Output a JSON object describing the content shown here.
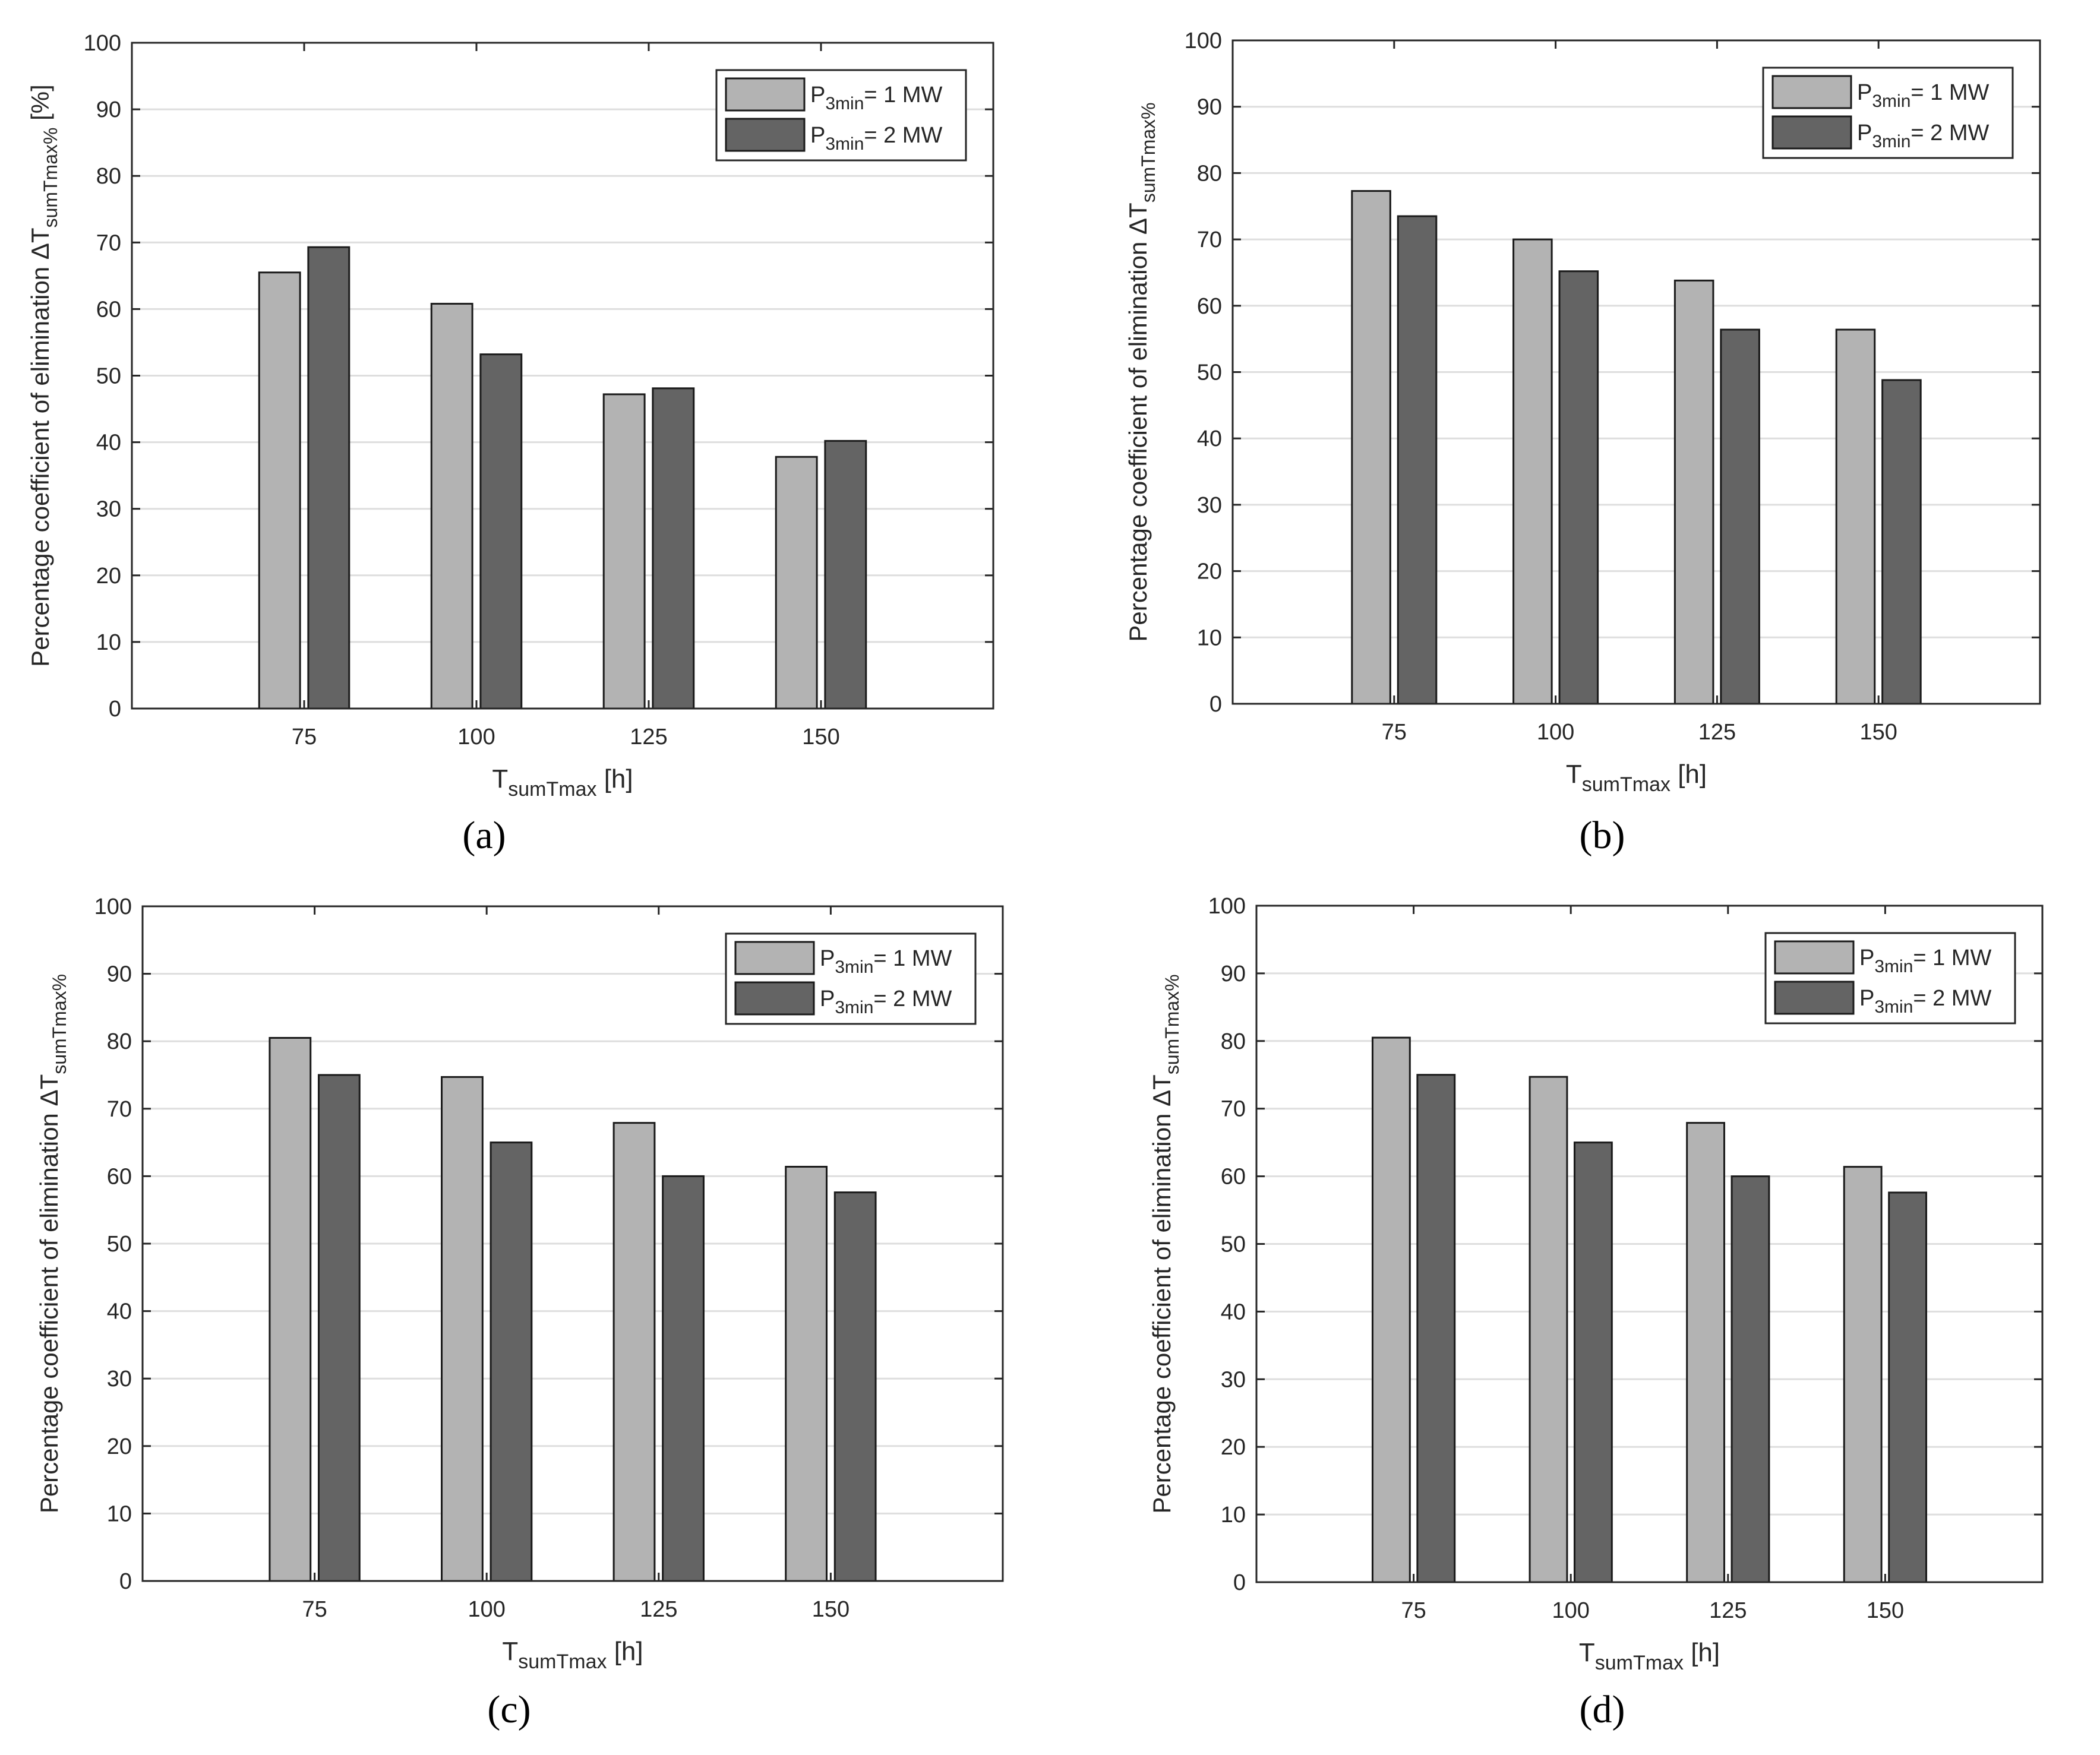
{
  "figure": {
    "captions": [
      "(a)",
      "(b)",
      "(c)",
      "(d)"
    ]
  },
  "colors": {
    "series1": "#b3b3b3",
    "series2": "#646464",
    "grid": "#dedede",
    "axis": "#262626",
    "text": "#262626",
    "background": "#ffffff"
  },
  "chart_data": [
    {
      "type": "bar",
      "panel": "(a)",
      "categories": [
        "75",
        "100",
        "125",
        "150"
      ],
      "series": [
        {
          "name": "P3min= 1 MW",
          "values": [
            65.5,
            60.8,
            47.2,
            37.8
          ]
        },
        {
          "name": "P3min= 2 MW",
          "values": [
            69.3,
            53.2,
            48.1,
            40.2
          ]
        }
      ],
      "legend_entries": [
        {
          "name": "P",
          "sub": "3min",
          "suffix": "= 1 MW"
        },
        {
          "name": "P",
          "sub": "3min",
          "suffix": "= 2 MW"
        }
      ],
      "xlabel": {
        "main": "T",
        "sub": "sumTmax",
        "suffix": " [h]"
      },
      "ylabel": {
        "prefix": "Percentage coefficient of elimination ΔT",
        "sub": "sumTmax%",
        "suffix": " [%]"
      },
      "ylim": [
        0,
        100
      ],
      "yticks": [
        "0",
        "10",
        "20",
        "30",
        "40",
        "50",
        "60",
        "70",
        "80",
        "90",
        "100"
      ],
      "grid": true,
      "legend": "top-right"
    },
    {
      "type": "bar",
      "panel": "(b)",
      "categories": [
        "75",
        "100",
        "125",
        "150"
      ],
      "series": [
        {
          "name": "P3min= 1 MW",
          "values": [
            77.3,
            70.0,
            63.8,
            56.4
          ]
        },
        {
          "name": "P3min= 2 MW",
          "values": [
            73.5,
            65.2,
            56.4,
            48.8
          ]
        }
      ],
      "legend_entries": [
        {
          "name": "P",
          "sub": "3min",
          "suffix": "= 1 MW"
        },
        {
          "name": "P",
          "sub": "3min",
          "suffix": "= 2 MW"
        }
      ],
      "xlabel": {
        "main": "T",
        "sub": "sumTmax",
        "suffix": " [h]"
      },
      "ylabel": {
        "prefix": "Percentage coefficient of elimination ΔT",
        "sub": "sumTmax%",
        "suffix": ""
      },
      "ylim": [
        0,
        100
      ],
      "yticks": [
        "0",
        "10",
        "20",
        "30",
        "40",
        "50",
        "60",
        "70",
        "80",
        "90",
        "100"
      ],
      "grid": true,
      "legend": "top-right"
    },
    {
      "type": "bar",
      "panel": "(c)",
      "categories": [
        "75",
        "100",
        "125",
        "150"
      ],
      "series": [
        {
          "name": "P3min= 1 MW",
          "values": [
            80.5,
            74.7,
            67.9,
            61.4
          ]
        },
        {
          "name": "P3min= 2 MW",
          "values": [
            75.0,
            65.0,
            60.0,
            57.6
          ]
        }
      ],
      "legend_entries": [
        {
          "name": "P",
          "sub": "3min",
          "suffix": "= 1 MW"
        },
        {
          "name": "P",
          "sub": "3min",
          "suffix": "= 2 MW"
        }
      ],
      "xlabel": {
        "main": "T",
        "sub": "sumTmax",
        "suffix": " [h]"
      },
      "ylabel": {
        "prefix": "Percentage coefficient of elimination ΔT",
        "sub": "sumTmax%",
        "suffix": ""
      },
      "ylim": [
        0,
        100
      ],
      "yticks": [
        "0",
        "10",
        "20",
        "30",
        "40",
        "50",
        "60",
        "70",
        "80",
        "90",
        "100"
      ],
      "grid": true,
      "legend": "top-right"
    },
    {
      "type": "bar",
      "panel": "(d)",
      "categories": [
        "75",
        "100",
        "125",
        "150"
      ],
      "series": [
        {
          "name": "P3min= 1 MW",
          "values": [
            80.5,
            74.7,
            67.9,
            61.4
          ]
        },
        {
          "name": "P3min= 2 MW",
          "values": [
            75.0,
            65.0,
            60.0,
            57.6
          ]
        }
      ],
      "legend_entries": [
        {
          "name": "P",
          "sub": "3min",
          "suffix": "= 1 MW"
        },
        {
          "name": "P",
          "sub": "3min",
          "suffix": "= 2 MW"
        }
      ],
      "xlabel": {
        "main": "T",
        "sub": "sumTmax",
        "suffix": " [h]"
      },
      "ylabel": {
        "prefix": "Percentage coefficient of elimination ΔT",
        "sub": "sumTmax%",
        "suffix": ""
      },
      "ylim": [
        0,
        100
      ],
      "yticks": [
        "0",
        "10",
        "20",
        "30",
        "40",
        "50",
        "60",
        "70",
        "80",
        "90",
        "100"
      ],
      "grid": true,
      "legend": "top-right"
    }
  ]
}
